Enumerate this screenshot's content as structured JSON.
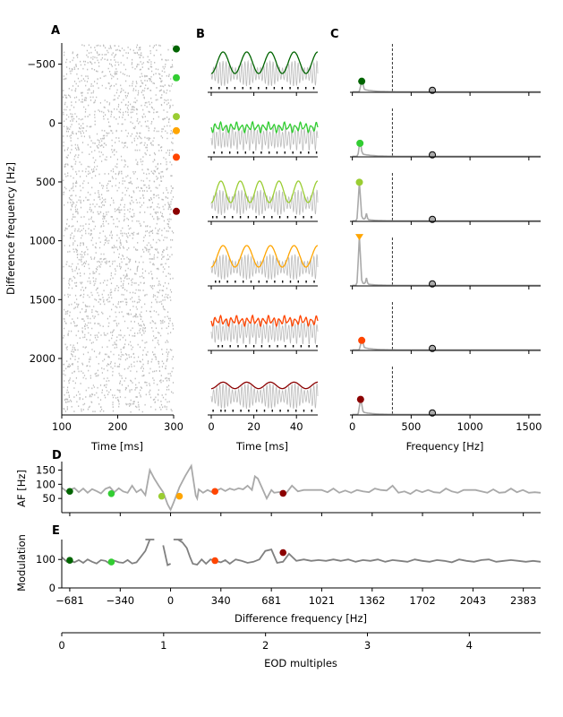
{
  "panels": {
    "A": "A",
    "B": "B",
    "C": "C",
    "D": "D",
    "E": "E"
  },
  "labels": {
    "a_ylabel": "Difference frequency [Hz]",
    "a_xlabel": "Time [ms]",
    "b_xlabel": "Time [ms]",
    "c_xlabel": "Frequency [Hz]",
    "d_ylabel": "AF [Hz]",
    "e_ylabel": "Modulation",
    "e_xlabel": "Difference frequency [Hz]",
    "eod_xlabel": "EOD multiples"
  },
  "colors": {
    "c1": "#006400",
    "c2": "#32cd32",
    "c3": "#9acd32",
    "c4": "#ffa500",
    "c5": "#ff4500",
    "c6": "#8b0000",
    "gray": "#a9a9a9",
    "darkgray": "#808080"
  },
  "chart_data": [
    {
      "panel": "A",
      "type": "scatter",
      "title": "",
      "xlabel": "Time [ms]",
      "ylabel": "Difference frequency [Hz]",
      "xlim": [
        100,
        300
      ],
      "ylim": [
        2480,
        -680
      ],
      "xticks": [
        "100",
        "200",
        "300"
      ],
      "yticks": [
        "−500",
        "0",
        "500",
        "1000",
        "1500",
        "2000"
      ],
      "marker_rows": [
        -630,
        -385,
        -55,
        65,
        290,
        750
      ]
    },
    {
      "panel": "B",
      "type": "line",
      "xlabel": "Time [ms]",
      "xlim": [
        0,
        50
      ],
      "xticks": [
        "0",
        "20",
        "40"
      ],
      "rows": 6
    },
    {
      "panel": "C",
      "type": "line",
      "xlabel": "Frequency [Hz]",
      "xlim": [
        -20,
        1600
      ],
      "xticks": [
        "0",
        "500",
        "1000",
        "1500"
      ],
      "dashed_x": 340,
      "eod_peak_x": 680,
      "af_peaks": [
        {
          "x": 80,
          "y": 0.22
        },
        {
          "x": 65,
          "y": 0.27
        },
        {
          "x": 60,
          "y": 0.78
        },
        {
          "x": 60,
          "y": 0.98
        },
        {
          "x": 80,
          "y": 0.2
        },
        {
          "x": 70,
          "y": 0.31
        }
      ]
    },
    {
      "panel": "D",
      "type": "line",
      "ylabel": "AF [Hz]",
      "xlim": [
        -735,
        2500
      ],
      "ylim": [
        0,
        180
      ],
      "yticks": [
        "50",
        "100",
        "150"
      ],
      "x": [
        -735,
        -700,
        -681,
        -650,
        -620,
        -590,
        -560,
        -530,
        -500,
        -470,
        -440,
        -410,
        -380,
        -350,
        -320,
        -290,
        -260,
        -230,
        -200,
        -170,
        -140,
        -110,
        -80,
        -50,
        -20,
        0,
        20,
        60,
        100,
        140,
        170,
        180,
        190,
        220,
        250,
        280,
        320,
        340,
        370,
        400,
        430,
        460,
        490,
        520,
        550,
        570,
        590,
        620,
        650,
        681,
        700,
        740,
        780,
        820,
        860,
        900,
        940,
        980,
        1020,
        1060,
        1100,
        1140,
        1180,
        1220,
        1260,
        1300,
        1340,
        1380,
        1420,
        1460,
        1500,
        1540,
        1580,
        1620,
        1660,
        1700,
        1740,
        1780,
        1820,
        1860,
        1900,
        1940,
        1980,
        2020,
        2060,
        2100,
        2140,
        2180,
        2220,
        2260,
        2300,
        2340,
        2380,
        2420,
        2460,
        2500
      ],
      "values": [
        88,
        74,
        80,
        87,
        72,
        85,
        70,
        83,
        76,
        68,
        84,
        90,
        72,
        86,
        75,
        70,
        95,
        72,
        82,
        62,
        150,
        120,
        95,
        72,
        30,
        10,
        35,
        90,
        130,
        165,
        60,
        50,
        82,
        70,
        80,
        72,
        80,
        85,
        76,
        85,
        80,
        86,
        82,
        95,
        80,
        128,
        120,
        85,
        50,
        80,
        70,
        73,
        68,
        95,
        75,
        80,
        80,
        80,
        80,
        72,
        85,
        70,
        78,
        70,
        80,
        75,
        72,
        85,
        80,
        78,
        95,
        70,
        75,
        66,
        80,
        72,
        80,
        72,
        70,
        85,
        75,
        70,
        80,
        80,
        80,
        75,
        70,
        82,
        70,
        72,
        85,
        72,
        80,
        70,
        72,
        70
      ],
      "markers": [
        {
          "x": -681,
          "y": 75
        },
        {
          "x": -400,
          "y": 67
        },
        {
          "x": -60,
          "y": 58
        },
        {
          "x": 60,
          "y": 58
        },
        {
          "x": 300,
          "y": 75
        },
        {
          "x": 760,
          "y": 68
        }
      ]
    },
    {
      "panel": "E",
      "type": "line",
      "ylabel": "Modulation",
      "xlabel": "Difference frequency [Hz]",
      "xlim": [
        -735,
        2500
      ],
      "ylim": [
        0,
        170
      ],
      "yticks": [
        "0",
        "100"
      ],
      "xticks": [
        "−681",
        "−340",
        "0",
        "340",
        "681",
        "1021",
        "1362",
        "1702",
        "2043",
        "2383"
      ],
      "x": [
        -735,
        -700,
        -681,
        -650,
        -620,
        -590,
        -560,
        -530,
        -500,
        -470,
        -440,
        -410,
        -380,
        -350,
        -320,
        -290,
        -260,
        -230,
        -200,
        -170,
        -140,
        -110,
        -80,
        -50,
        -20,
        0,
        20,
        50,
        80,
        110,
        130,
        150,
        180,
        210,
        240,
        270,
        300,
        340,
        370,
        400,
        440,
        480,
        520,
        560,
        600,
        640,
        681,
        720,
        760,
        800,
        850,
        900,
        950,
        1000,
        1050,
        1100,
        1150,
        1200,
        1250,
        1300,
        1350,
        1400,
        1450,
        1500,
        1550,
        1600,
        1650,
        1700,
        1750,
        1800,
        1850,
        1900,
        1950,
        2000,
        2050,
        2100,
        2150,
        2200,
        2250,
        2300,
        2350,
        2400,
        2450,
        2500
      ],
      "values": [
        108,
        92,
        96,
        90,
        98,
        88,
        100,
        92,
        86,
        98,
        95,
        85,
        96,
        90,
        88,
        98,
        86,
        90,
        110,
        130,
        170,
        200,
        180,
        150,
        80,
        85,
        200,
        170,
        160,
        140,
        110,
        85,
        82,
        100,
        85,
        100,
        95,
        90,
        98,
        85,
        100,
        95,
        88,
        92,
        100,
        130,
        135,
        88,
        92,
        120,
        95,
        100,
        95,
        98,
        95,
        100,
        95,
        100,
        92,
        98,
        95,
        100,
        92,
        98,
        95,
        92,
        100,
        95,
        92,
        98,
        95,
        90,
        100,
        95,
        92,
        98,
        100,
        92,
        95,
        98,
        95,
        92,
        95,
        92
      ],
      "markers": [
        {
          "x": -681,
          "y": 97
        },
        {
          "x": -400,
          "y": 91
        },
        {
          "x": 300,
          "y": 96
        },
        {
          "x": 760,
          "y": 124
        }
      ]
    },
    {
      "panel": "EOD",
      "type": "line",
      "xlabel": "EOD multiples",
      "xlim": [
        0,
        4.7
      ],
      "xticks": [
        "0",
        "1",
        "2",
        "3",
        "4"
      ]
    }
  ]
}
